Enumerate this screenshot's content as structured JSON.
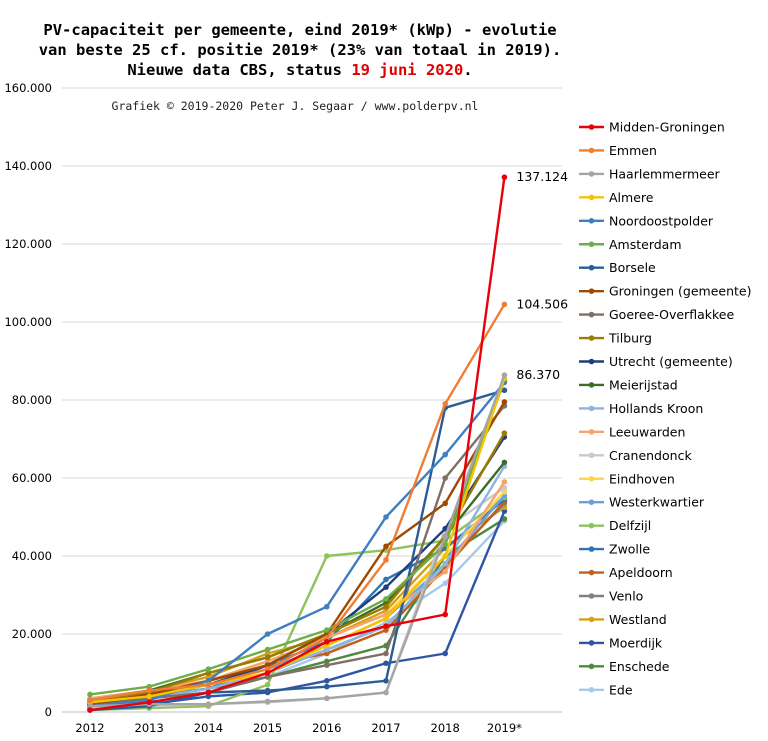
{
  "chart_data": {
    "type": "line",
    "title_line1": "PV-capaciteit per gemeente, eind 2019* (kWp) - evolutie",
    "title_line2": "van beste 25 cf. positie 2019* (23% van totaal in 2019).",
    "title_line3_prefix": "Nieuwe data CBS, status ",
    "title_line3_date": "19 juni 2020",
    "title_line3_suffix": ".",
    "credit": "Grafiek © 2019-2020 Peter J. Segaar / www.polderpv.nl",
    "xlabel": "",
    "ylabel": "",
    "x": [
      "2012",
      "2013",
      "2014",
      "2015",
      "2016",
      "2017",
      "2018",
      "2019*"
    ],
    "ylim": [
      0,
      160000
    ],
    "yticks": [
      0,
      20000,
      40000,
      60000,
      80000,
      100000,
      120000,
      140000,
      160000
    ],
    "ytick_labels": [
      "0",
      "20.000",
      "40.000",
      "60.000",
      "80.000",
      "100.000",
      "120.000",
      "140.000",
      "160.000"
    ],
    "grid": "horizontal",
    "legend_position": "right",
    "annotations": [
      {
        "text": "137.124",
        "series": "Midden-Groningen"
      },
      {
        "text": "104.506",
        "series": "Emmen"
      },
      {
        "text": "86.370",
        "series": "Haarlemmermeer"
      }
    ],
    "series": [
      {
        "name": "Midden-Groningen",
        "color": "#e8000b",
        "values": [
          500,
          2500,
          5000,
          10000,
          18000,
          22000,
          25000,
          137124
        ]
      },
      {
        "name": "Emmen",
        "color": "#f07d33",
        "values": [
          3000,
          5500,
          7000,
          11000,
          19000,
          39000,
          79000,
          104506
        ]
      },
      {
        "name": "Haarlemmermeer",
        "color": "#a5a5a5",
        "values": [
          1500,
          2000,
          2000,
          2700,
          3500,
          5000,
          45000,
          86370
        ]
      },
      {
        "name": "Almere",
        "color": "#f5c400",
        "values": [
          2500,
          4000,
          7000,
          10000,
          17000,
          24000,
          40000,
          85500
        ]
      },
      {
        "name": "Noordoostpolder",
        "color": "#3f7fc1",
        "values": [
          1500,
          3000,
          8000,
          20000,
          27000,
          50000,
          66000,
          84500
        ]
      },
      {
        "name": "Amsterdam",
        "color": "#70ad47",
        "values": [
          4500,
          6500,
          11000,
          16000,
          21000,
          29000,
          43000,
          85000
        ]
      },
      {
        "name": "Borsele",
        "color": "#2a5c96",
        "values": [
          500,
          1500,
          5000,
          5500,
          6500,
          8000,
          78000,
          82500
        ]
      },
      {
        "name": "Groningen (gemeente)",
        "color": "#9e4a00",
        "values": [
          2000,
          4500,
          8000,
          12000,
          20000,
          42500,
          53500,
          79500
        ]
      },
      {
        "name": "Goeree-Overflakkee",
        "color": "#7f6f66",
        "values": [
          1500,
          3500,
          5000,
          9000,
          12000,
          15000,
          60000,
          78500
        ]
      },
      {
        "name": "Tilburg",
        "color": "#9c7c00",
        "values": [
          2500,
          5000,
          10000,
          14000,
          20000,
          27000,
          45000,
          71500
        ]
      },
      {
        "name": "Utrecht (gemeente)",
        "color": "#1f3f7c",
        "values": [
          2000,
          4000,
          7000,
          12000,
          20000,
          32000,
          47000,
          70500
        ]
      },
      {
        "name": "Meierijstad",
        "color": "#3c6e28",
        "values": [
          3000,
          5500,
          10000,
          14000,
          20000,
          28000,
          45000,
          64000
        ]
      },
      {
        "name": "Hollands Kroon",
        "color": "#8fb4df",
        "values": [
          1500,
          3500,
          6000,
          10000,
          16000,
          22000,
          38000,
          63000
        ]
      },
      {
        "name": "Leeuwarden",
        "color": "#f5a56b",
        "values": [
          3500,
          5500,
          8000,
          13000,
          19000,
          25000,
          36000,
          59000
        ]
      },
      {
        "name": "Cranendonck",
        "color": "#c9c9c9",
        "values": [
          1000,
          1500,
          2000,
          2500,
          3500,
          5000,
          47000,
          57500
        ]
      },
      {
        "name": "Eindhoven",
        "color": "#ffd54d",
        "values": [
          3000,
          5000,
          8000,
          13000,
          19000,
          25000,
          40000,
          56500
        ]
      },
      {
        "name": "Westerkwartier",
        "color": "#6aa0d8",
        "values": [
          2000,
          4000,
          7000,
          11000,
          17000,
          24000,
          38000,
          55500
        ]
      },
      {
        "name": "Delfzijl",
        "color": "#8dc25d",
        "values": [
          500,
          1000,
          1500,
          7000,
          40000,
          41500,
          44000,
          55000
        ]
      },
      {
        "name": "Zwolle",
        "color": "#2e75b6",
        "values": [
          1500,
          3500,
          6000,
          12000,
          18000,
          34000,
          42000,
          54500
        ]
      },
      {
        "name": "Apeldoorn",
        "color": "#c0601a",
        "values": [
          2500,
          4500,
          8000,
          12000,
          15000,
          21000,
          37000,
          54000
        ]
      },
      {
        "name": "Venlo",
        "color": "#808080",
        "values": [
          2000,
          4000,
          6000,
          10000,
          16000,
          22000,
          38000,
          53500
        ]
      },
      {
        "name": "Westland",
        "color": "#d4a017",
        "values": [
          3000,
          5500,
          9000,
          15000,
          19000,
          26000,
          42000,
          52500
        ]
      },
      {
        "name": "Moerdijk",
        "color": "#2f55a4",
        "values": [
          1000,
          2000,
          4000,
          5000,
          8000,
          12500,
          15000,
          51500
        ]
      },
      {
        "name": "Enschede",
        "color": "#4e8a3e",
        "values": [
          2500,
          4000,
          6000,
          9000,
          13000,
          17000,
          40000,
          49500
        ]
      },
      {
        "name": "Ede",
        "color": "#a8c8ea",
        "values": [
          1000,
          2500,
          5000,
          9000,
          15000,
          23000,
          33000,
          49000
        ]
      }
    ]
  }
}
